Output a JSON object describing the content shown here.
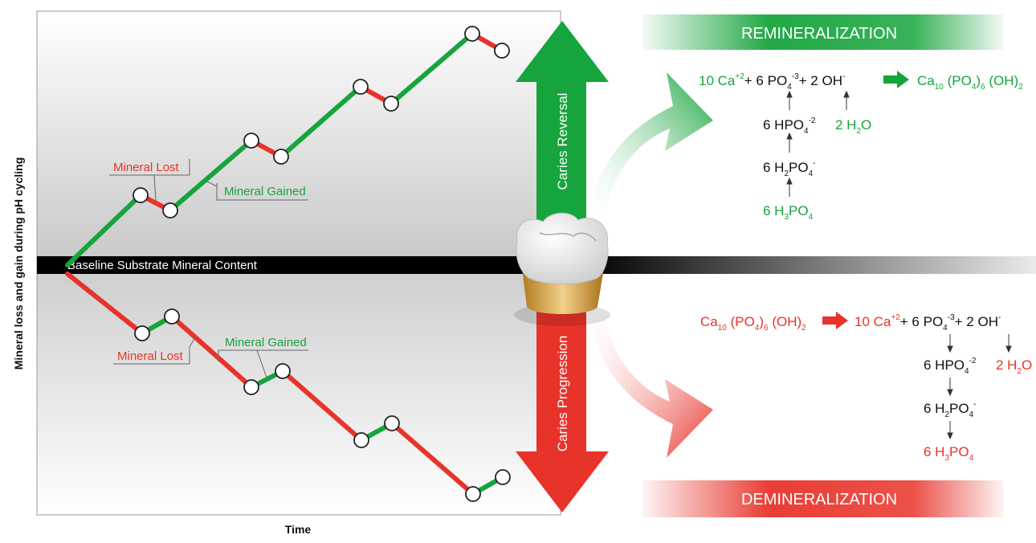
{
  "axes": {
    "y_label": "Mineral loss and gain during pH cycling",
    "x_label": "Time"
  },
  "baseline_label": "Baseline Substrate Mineral Content",
  "upper_annotations": {
    "lost": "Mineral Lost",
    "gained": "Mineral Gained"
  },
  "lower_annotations": {
    "lost": "Mineral Lost",
    "gained": "Mineral Gained"
  },
  "arrows": {
    "up": "Caries Reversal",
    "down": "Caries Progression"
  },
  "banners": {
    "top": "REMINERALIZATION",
    "bottom": "DEMINERALIZATION"
  },
  "colors": {
    "green": "#16a43c",
    "red": "#e8332a",
    "black": "#111111"
  },
  "reactions": {
    "remineralization": {
      "ca": "10 Ca",
      "ca_charge": "+2",
      "plus1": "+ 6 PO",
      "po4_sub": "4",
      "po4_charge": "-3",
      "plus2": "+ 2 OH",
      "oh_charge": "-",
      "product": "Ca",
      "product_sub1": "10",
      "product_mid": " (PO",
      "product_sub2": "4",
      "product_mid2": ")",
      "product_sub3": "6",
      "product_end": " (OH)",
      "product_sub4": "2",
      "hpo4": "6 HPO",
      "hpo4_sub": "4",
      "hpo4_charge": "-2",
      "h2o": "2 H",
      "h2o_sub": "2",
      "h2o_end": "O",
      "h2po4": "6 H",
      "h2po4_sub1": "2",
      "h2po4_mid": "PO",
      "h2po4_sub2": "4",
      "h2po4_charge": "-",
      "h3po4": "6 H",
      "h3po4_sub1": "3",
      "h3po4_mid": "PO",
      "h3po4_sub2": "4"
    },
    "demineralization": {
      "reactant": "Ca",
      "reactant_sub1": "10",
      "reactant_mid": " (PO",
      "reactant_sub2": "4",
      "reactant_mid2": ")",
      "reactant_sub3": "6",
      "reactant_end": " (OH)",
      "reactant_sub4": "2",
      "ca": "10 Ca",
      "ca_charge": "+2",
      "plus1": "+ 6 PO",
      "po4_sub": "4",
      "po4_charge": "-3",
      "plus2": "+ 2 OH",
      "oh_charge": "-",
      "hpo4": "6 HPO",
      "hpo4_sub": "4",
      "hpo4_charge": "-2",
      "h2o": "2 H",
      "h2o_sub": "2",
      "h2o_end": "O",
      "h2po4": "6 H",
      "h2po4_sub1": "2",
      "h2po4_mid": "PO",
      "h2po4_sub2": "4",
      "h2po4_charge": "-",
      "h3po4": "6 H",
      "h3po4_sub1": "3",
      "h3po4_mid": "PO",
      "h3po4_sub2": "4"
    }
  }
}
